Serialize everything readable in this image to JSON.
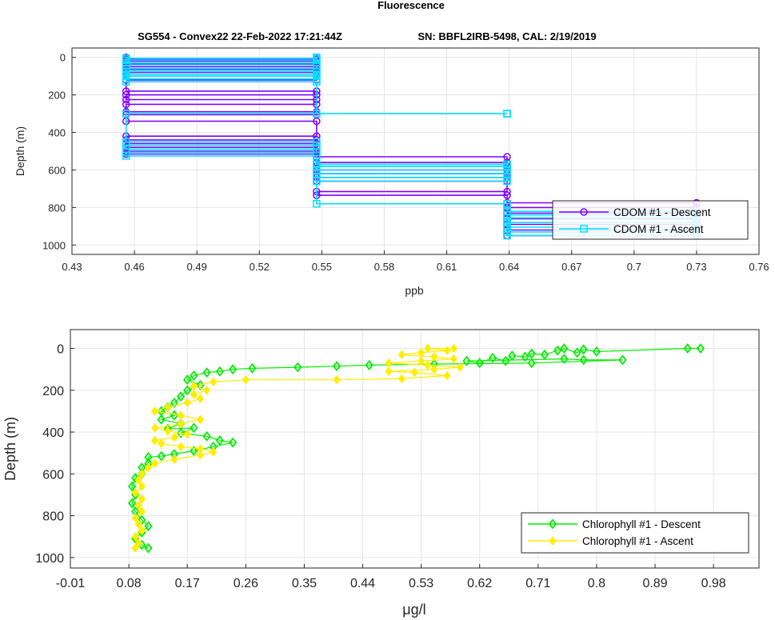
{
  "figure": {
    "title": "Fluorescence",
    "subtitle_left": "SG554 - Convex22 22-Feb-2022 17:21:44Z",
    "subtitle_right": "SN: BBFL2IRB-5498, CAL: 2/19/2019"
  },
  "chart_data": [
    {
      "type": "line",
      "xlabel": "ppb",
      "ylabel": "Depth (m)",
      "xlim": [
        0.43,
        0.76
      ],
      "ylim": [
        1050,
        -50
      ],
      "y_reversed": true,
      "xticks": [
        "0.43",
        "0.46",
        "0.49",
        "0.52",
        "0.55",
        "0.58",
        "0.61",
        "0.64",
        "0.67",
        "0.7",
        "0.73",
        "0.76"
      ],
      "yticks": [
        "0",
        "200",
        "400",
        "600",
        "800",
        "1000"
      ],
      "grid": true,
      "legend_position": "right",
      "series": [
        {
          "name": "CDOM #1 - Descent",
          "color": "#8000ff",
          "marker": "circle",
          "points": [
            [
              0.456,
              0
            ],
            [
              0.456,
              10
            ],
            [
              0.5475,
              10
            ],
            [
              0.5475,
              20
            ],
            [
              0.456,
              20
            ],
            [
              0.456,
              35
            ],
            [
              0.5475,
              35
            ],
            [
              0.5475,
              50
            ],
            [
              0.456,
              50
            ],
            [
              0.456,
              65
            ],
            [
              0.5475,
              65
            ],
            [
              0.5475,
              80
            ],
            [
              0.456,
              80
            ],
            [
              0.456,
              100
            ],
            [
              0.5475,
              100
            ],
            [
              0.5475,
              120
            ],
            [
              0.456,
              120
            ],
            [
              0.456,
              180
            ],
            [
              0.5475,
              180
            ],
            [
              0.5475,
              200
            ],
            [
              0.456,
              200
            ],
            [
              0.456,
              225
            ],
            [
              0.5475,
              225
            ],
            [
              0.5475,
              250
            ],
            [
              0.456,
              250
            ],
            [
              0.456,
              290
            ],
            [
              0.5475,
              290
            ],
            [
              0.5475,
              305
            ],
            [
              0.456,
              305
            ],
            [
              0.456,
              340
            ],
            [
              0.5475,
              340
            ],
            [
              0.5475,
              420
            ],
            [
              0.456,
              420
            ],
            [
              0.456,
              440
            ],
            [
              0.5475,
              440
            ],
            [
              0.5475,
              460
            ],
            [
              0.456,
              460
            ],
            [
              0.456,
              480
            ],
            [
              0.5475,
              480
            ],
            [
              0.5475,
              500
            ],
            [
              0.456,
              500
            ],
            [
              0.456,
              515
            ],
            [
              0.5475,
              515
            ],
            [
              0.5475,
              530
            ],
            [
              0.639,
              530
            ],
            [
              0.639,
              560
            ],
            [
              0.5475,
              560
            ],
            [
              0.5475,
              580
            ],
            [
              0.639,
              580
            ],
            [
              0.639,
              600
            ],
            [
              0.5475,
              600
            ],
            [
              0.5475,
              620
            ],
            [
              0.639,
              620
            ],
            [
              0.639,
              640
            ],
            [
              0.5475,
              640
            ],
            [
              0.5475,
              660
            ],
            [
              0.639,
              660
            ],
            [
              0.639,
              715
            ],
            [
              0.5475,
              715
            ],
            [
              0.5475,
              735
            ],
            [
              0.639,
              735
            ],
            [
              0.639,
              775
            ],
            [
              0.73,
              775
            ],
            [
              0.73,
              800
            ],
            [
              0.639,
              800
            ],
            [
              0.639,
              830
            ],
            [
              0.73,
              830
            ],
            [
              0.73,
              860
            ],
            [
              0.639,
              860
            ],
            [
              0.639,
              890
            ],
            [
              0.73,
              890
            ],
            [
              0.73,
              920
            ],
            [
              0.639,
              920
            ],
            [
              0.639,
              950
            ],
            [
              0.73,
              950
            ]
          ]
        },
        {
          "name": "CDOM #1 - Ascent",
          "color": "#00e0ff",
          "marker": "square",
          "points": [
            [
              0.73,
              950
            ],
            [
              0.639,
              950
            ],
            [
              0.639,
              930
            ],
            [
              0.73,
              930
            ],
            [
              0.73,
              905
            ],
            [
              0.639,
              905
            ],
            [
              0.639,
              880
            ],
            [
              0.73,
              880
            ],
            [
              0.73,
              855
            ],
            [
              0.639,
              855
            ],
            [
              0.639,
              840
            ],
            [
              0.73,
              840
            ],
            [
              0.73,
              820
            ],
            [
              0.639,
              820
            ],
            [
              0.639,
              780
            ],
            [
              0.5475,
              780
            ],
            [
              0.5475,
              660
            ],
            [
              0.639,
              660
            ],
            [
              0.639,
              640
            ],
            [
              0.5475,
              640
            ],
            [
              0.5475,
              620
            ],
            [
              0.639,
              620
            ],
            [
              0.639,
              600
            ],
            [
              0.5475,
              600
            ],
            [
              0.5475,
              580
            ],
            [
              0.639,
              580
            ],
            [
              0.639,
              570
            ],
            [
              0.5475,
              570
            ],
            [
              0.5475,
              525
            ],
            [
              0.456,
              525
            ],
            [
              0.456,
              505
            ],
            [
              0.5475,
              505
            ],
            [
              0.5475,
              490
            ],
            [
              0.456,
              490
            ],
            [
              0.456,
              470
            ],
            [
              0.5475,
              470
            ],
            [
              0.5475,
              450
            ],
            [
              0.456,
              450
            ],
            [
              0.456,
              300
            ],
            [
              0.639,
              300
            ],
            [
              0.639,
              300
            ],
            [
              0.5475,
              300
            ],
            [
              0.5475,
              130
            ],
            [
              0.456,
              130
            ],
            [
              0.456,
              115
            ],
            [
              0.5475,
              115
            ],
            [
              0.5475,
              100
            ],
            [
              0.456,
              100
            ],
            [
              0.456,
              90
            ],
            [
              0.5475,
              90
            ],
            [
              0.5475,
              75
            ],
            [
              0.456,
              75
            ],
            [
              0.456,
              60
            ],
            [
              0.5475,
              60
            ],
            [
              0.5475,
              45
            ],
            [
              0.456,
              45
            ],
            [
              0.456,
              30
            ],
            [
              0.5475,
              30
            ],
            [
              0.5475,
              15
            ],
            [
              0.456,
              15
            ],
            [
              0.456,
              5
            ],
            [
              0.5475,
              5
            ],
            [
              0.5475,
              0
            ]
          ]
        }
      ]
    },
    {
      "type": "line",
      "xlabel": "μg/l",
      "ylabel": "Depth (m)",
      "xlim": [
        -0.01,
        1.05
      ],
      "ylim": [
        1050,
        -90
      ],
      "y_reversed": true,
      "xticks": [
        "-0.01",
        "0.08",
        "0.17",
        "0.26",
        "0.35",
        "0.44",
        "0.53",
        "0.62",
        "0.71",
        "0.8",
        "0.89",
        "0.98"
      ],
      "yticks": [
        "0",
        "200",
        "400",
        "600",
        "800",
        "1000"
      ],
      "grid": true,
      "legend_position": "bottom-right",
      "series": [
        {
          "name": "Chlorophyll #1 - Descent",
          "color": "#00ee00",
          "marker": "diamond",
          "points": [
            [
              0.96,
              0
            ],
            [
              0.94,
              0
            ],
            [
              0.8,
              15
            ],
            [
              0.78,
              5
            ],
            [
              0.77,
              20
            ],
            [
              0.75,
              0
            ],
            [
              0.74,
              10
            ],
            [
              0.72,
              30
            ],
            [
              0.7,
              25
            ],
            [
              0.69,
              40
            ],
            [
              0.67,
              35
            ],
            [
              0.66,
              60
            ],
            [
              0.64,
              45
            ],
            [
              0.62,
              70
            ],
            [
              0.6,
              60
            ],
            [
              0.75,
              50
            ],
            [
              0.78,
              55
            ],
            [
              0.84,
              55
            ],
            [
              0.7,
              70
            ],
            [
              0.55,
              75
            ],
            [
              0.45,
              80
            ],
            [
              0.4,
              85
            ],
            [
              0.34,
              90
            ],
            [
              0.27,
              95
            ],
            [
              0.24,
              100
            ],
            [
              0.22,
              110
            ],
            [
              0.2,
              115
            ],
            [
              0.18,
              130
            ],
            [
              0.17,
              150
            ],
            [
              0.19,
              175
            ],
            [
              0.17,
              200
            ],
            [
              0.16,
              230
            ],
            [
              0.15,
              260
            ],
            [
              0.14,
              280
            ],
            [
              0.13,
              300
            ],
            [
              0.15,
              320
            ],
            [
              0.13,
              340
            ],
            [
              0.16,
              360
            ],
            [
              0.14,
              385
            ],
            [
              0.18,
              380
            ],
            [
              0.16,
              405
            ],
            [
              0.2,
              420
            ],
            [
              0.22,
              440
            ],
            [
              0.24,
              450
            ],
            [
              0.21,
              470
            ],
            [
              0.18,
              490
            ],
            [
              0.15,
              505
            ],
            [
              0.13,
              515
            ],
            [
              0.11,
              520
            ],
            [
              0.11,
              550
            ],
            [
              0.1,
              570
            ],
            [
              0.1,
              600
            ],
            [
              0.09,
              620
            ],
            [
              0.085,
              660
            ],
            [
              0.09,
              700
            ],
            [
              0.085,
              740
            ],
            [
              0.09,
              780
            ],
            [
              0.1,
              820
            ],
            [
              0.11,
              850
            ],
            [
              0.1,
              880
            ],
            [
              0.09,
              910
            ],
            [
              0.1,
              940
            ],
            [
              0.11,
              955
            ]
          ]
        },
        {
          "name": "Chlorophyll #1 - Ascent",
          "color": "#ffee00",
          "marker": "diamond-filled",
          "points": [
            [
              0.09,
              955
            ],
            [
              0.095,
              930
            ],
            [
              0.09,
              900
            ],
            [
              0.1,
              870
            ],
            [
              0.095,
              840
            ],
            [
              0.09,
              810
            ],
            [
              0.1,
              780
            ],
            [
              0.095,
              750
            ],
            [
              0.1,
              720
            ],
            [
              0.09,
              690
            ],
            [
              0.1,
              660
            ],
            [
              0.095,
              630
            ],
            [
              0.1,
              600
            ],
            [
              0.11,
              570
            ],
            [
              0.12,
              550
            ],
            [
              0.15,
              530
            ],
            [
              0.19,
              510
            ],
            [
              0.21,
              495
            ],
            [
              0.19,
              480
            ],
            [
              0.16,
              470
            ],
            [
              0.13,
              455
            ],
            [
              0.12,
              440
            ],
            [
              0.15,
              425
            ],
            [
              0.17,
              410
            ],
            [
              0.14,
              395
            ],
            [
              0.12,
              380
            ],
            [
              0.16,
              360
            ],
            [
              0.19,
              340
            ],
            [
              0.16,
              320
            ],
            [
              0.12,
              300
            ],
            [
              0.14,
              280
            ],
            [
              0.17,
              260
            ],
            [
              0.19,
              240
            ],
            [
              0.18,
              220
            ],
            [
              0.2,
              200
            ],
            [
              0.18,
              180
            ],
            [
              0.21,
              160
            ],
            [
              0.26,
              150
            ],
            [
              0.4,
              150
            ],
            [
              0.5,
              145
            ],
            [
              0.57,
              130
            ],
            [
              0.52,
              115
            ],
            [
              0.48,
              110
            ],
            [
              0.55,
              100
            ],
            [
              0.59,
              90
            ],
            [
              0.54,
              80
            ],
            [
              0.48,
              70
            ],
            [
              0.53,
              60
            ],
            [
              0.58,
              50
            ],
            [
              0.55,
              40
            ],
            [
              0.5,
              30
            ],
            [
              0.53,
              20
            ],
            [
              0.57,
              10
            ],
            [
              0.54,
              0
            ],
            [
              0.58,
              0
            ]
          ]
        }
      ]
    }
  ]
}
